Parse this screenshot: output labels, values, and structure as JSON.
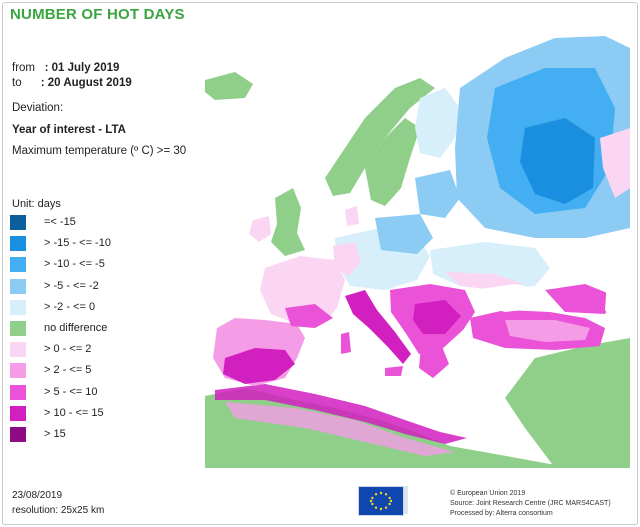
{
  "title": "NUMBER OF HOT DAYS",
  "period": {
    "from_label": "from",
    "from_value": ": 01 July 2019",
    "to_label": "to",
    "to_value": ": 20 August 2019"
  },
  "deviation_label": "Deviation:",
  "comparison": "Year of interest - LTA",
  "criterion": "Maximum temperature (º C) >= 30",
  "legend": {
    "unit": "Unit:  days",
    "items": [
      {
        "label": "=< -15",
        "color": "#0c5f9c"
      },
      {
        "label": "> -15 - <= -10",
        "color": "#1a8fe0"
      },
      {
        "label": "> -10 - <= -5",
        "color": "#43aef2"
      },
      {
        "label": "> -5 - <= -2",
        "color": "#8cccf4"
      },
      {
        "label": "> -2 - <= 0",
        "color": "#d7eefb"
      },
      {
        "label": "no difference",
        "color": "#8fcf8a"
      },
      {
        "label": "> 0 - <= 2",
        "color": "#fbd6f2"
      },
      {
        "label": "> 2 - <= 5",
        "color": "#f59ce6"
      },
      {
        "label": "> 5 - <= 10",
        "color": "#ea52d8"
      },
      {
        "label": "> 10 - <= 15",
        "color": "#d21fbf"
      },
      {
        "label": "> 15",
        "color": "#8e0a86"
      }
    ]
  },
  "footer": {
    "date": "23/08/2019",
    "resolution": "resolution:  25x25 km"
  },
  "credits": {
    "copyright": "© European Union 2019",
    "source": "Source: Joint Research Centre (JRC MARS4CAST)",
    "processed": "Processed by: Alterra consortium"
  },
  "map": {
    "sea_color": "#ffffff",
    "outside_color": "#a9d39b",
    "region": "Europe"
  }
}
